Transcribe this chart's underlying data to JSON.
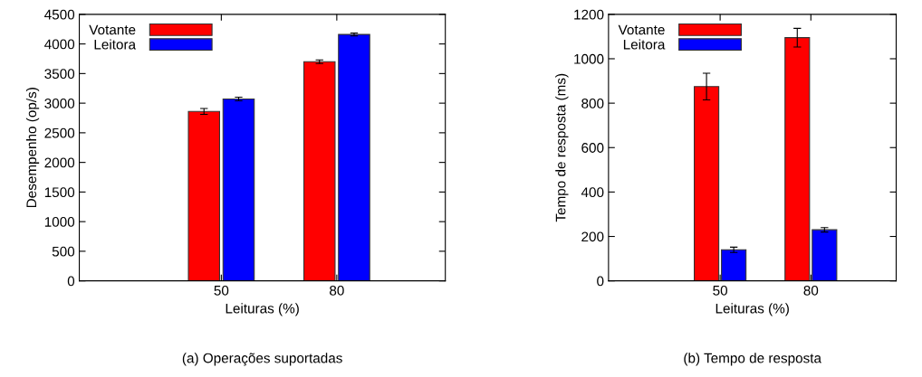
{
  "chart_data": [
    {
      "type": "bar",
      "categories": [
        "50",
        "80"
      ],
      "xlabel": "Leituras (%)",
      "ylabel": "Desempenho (op/s)",
      "ylim": [
        0,
        4500
      ],
      "yticks": [
        0,
        500,
        1000,
        1500,
        2000,
        2500,
        3000,
        3500,
        4000,
        4500
      ],
      "legend": "top left",
      "annotations": [
        "(a) Operações suportadas"
      ],
      "series": [
        {
          "name": "Votante",
          "color": "#ff0000",
          "values": [
            2860,
            3700
          ],
          "errors": [
            50,
            30
          ]
        },
        {
          "name": "Leitora",
          "color": "#0000ff",
          "values": [
            3070,
            4160
          ],
          "errors": [
            30,
            25
          ]
        }
      ]
    },
    {
      "type": "bar",
      "categories": [
        "50",
        "80"
      ],
      "xlabel": "Leituras (%)",
      "ylabel": "Tempo de resposta (ms)",
      "ylim": [
        0,
        1200
      ],
      "yticks": [
        0,
        200,
        400,
        600,
        800,
        1000,
        1200
      ],
      "legend": "top left",
      "annotations": [
        "(b) Tempo de resposta"
      ],
      "series": [
        {
          "name": "Votante",
          "color": "#ff0000",
          "values": [
            875,
            1095
          ],
          "errors": [
            60,
            42
          ]
        },
        {
          "name": "Leitora",
          "color": "#0000ff",
          "values": [
            140,
            230
          ],
          "errors": [
            12,
            10
          ]
        }
      ]
    }
  ]
}
